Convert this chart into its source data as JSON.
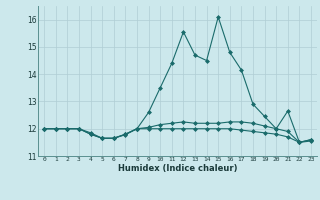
{
  "title": "",
  "xlabel": "Humidex (Indice chaleur)",
  "ylabel": "",
  "background_color": "#cce8ec",
  "grid_color": "#b0ced4",
  "line_color": "#1a6b6b",
  "x": [
    0,
    1,
    2,
    3,
    4,
    5,
    6,
    7,
    8,
    9,
    10,
    11,
    12,
    13,
    14,
    15,
    16,
    17,
    18,
    19,
    20,
    21,
    22,
    23
  ],
  "series": [
    [
      12.0,
      12.0,
      12.0,
      12.0,
      11.8,
      11.65,
      11.65,
      11.8,
      12.0,
      12.6,
      13.5,
      14.4,
      15.55,
      14.7,
      14.5,
      16.1,
      14.8,
      14.15,
      12.9,
      12.45,
      12.0,
      12.65,
      11.5,
      11.6
    ],
    [
      12.0,
      12.0,
      12.0,
      12.0,
      11.8,
      11.65,
      11.65,
      11.8,
      12.0,
      12.05,
      12.15,
      12.2,
      12.25,
      12.2,
      12.2,
      12.2,
      12.25,
      12.25,
      12.2,
      12.1,
      12.0,
      11.9,
      11.5,
      11.6
    ],
    [
      12.0,
      12.0,
      12.0,
      12.0,
      11.85,
      11.65,
      11.65,
      11.78,
      12.0,
      12.0,
      12.0,
      12.0,
      12.0,
      12.0,
      12.0,
      12.0,
      12.0,
      11.95,
      11.9,
      11.85,
      11.8,
      11.7,
      11.5,
      11.55
    ]
  ],
  "ylim": [
    11.0,
    16.5
  ],
  "yticks": [
    11,
    12,
    13,
    14,
    15,
    16
  ],
  "xticks": [
    0,
    1,
    2,
    3,
    4,
    5,
    6,
    7,
    8,
    9,
    10,
    11,
    12,
    13,
    14,
    15,
    16,
    17,
    18,
    19,
    20,
    21,
    22,
    23
  ],
  "xlim": [
    -0.5,
    23.5
  ]
}
